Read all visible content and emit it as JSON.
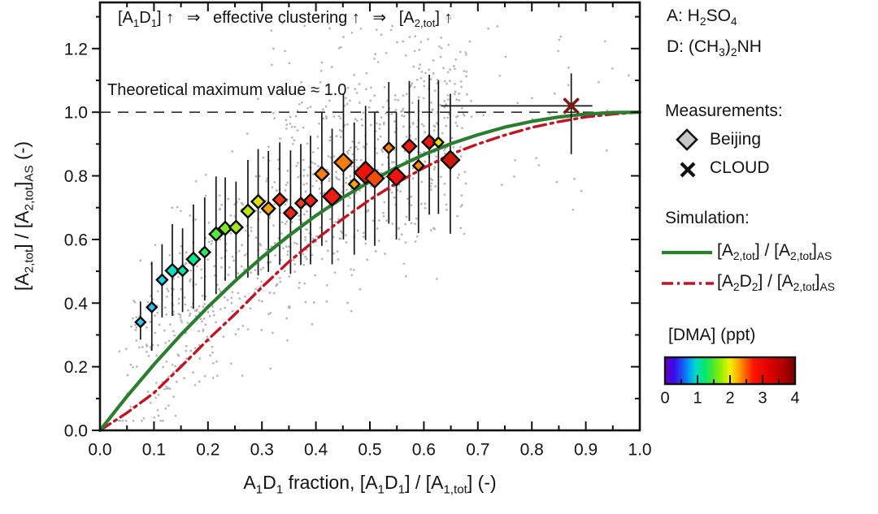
{
  "figure": {
    "annotation": [
      {
        "t": "[A"
      },
      {
        "t": "1",
        "s": 1
      },
      {
        "t": "D"
      },
      {
        "t": "1",
        "s": 1
      },
      {
        "t": "] ↑  ⇒  effective clustering ↑  ⇒  [A"
      },
      {
        "t": "2,tot",
        "s": 1
      },
      {
        "t": "] ↑"
      }
    ],
    "theoretical_label": "Theoretical maximum value ≈ 1.0"
  },
  "legend": {
    "species_a": [
      {
        "t": "A: H"
      },
      {
        "t": "2",
        "s": 1
      },
      {
        "t": "SO"
      },
      {
        "t": "4",
        "s": 1
      }
    ],
    "species_d": [
      {
        "t": "D: (CH"
      },
      {
        "t": "3",
        "s": 1
      },
      {
        "t": ")"
      },
      {
        "t": "2",
        "s": 1
      },
      {
        "t": "NH"
      }
    ],
    "measurements_title": "Measurements:",
    "beijing_label": "Beijing",
    "cloud_label": "CLOUD",
    "simulation_title": "Simulation:",
    "sim_green_label": [
      {
        "t": "[A"
      },
      {
        "t": "2,tot",
        "s": 1
      },
      {
        "t": "] / [A"
      },
      {
        "t": "2,tot",
        "s": 1
      },
      {
        "t": "]"
      },
      {
        "t": "AS",
        "s": 1
      }
    ],
    "sim_red_label": [
      {
        "t": "[A"
      },
      {
        "t": "2",
        "s": 1
      },
      {
        "t": "D"
      },
      {
        "t": "2",
        "s": 1
      },
      {
        "t": "] / [A"
      },
      {
        "t": "2,tot",
        "s": 1
      },
      {
        "t": "]"
      },
      {
        "t": "AS",
        "s": 1
      }
    ],
    "beijing_marker_fill": "#c8c8c8",
    "cloud_marker_color": "#111111",
    "colorbar": {
      "title": "[DMA] (ppt)",
      "tick_labels": [
        "0",
        "1",
        "2",
        "3",
        "4"
      ],
      "stops": [
        [
          0,
          "#6b00c4"
        ],
        [
          0.07,
          "#3a0ae8"
        ],
        [
          0.13,
          "#1b50f5"
        ],
        [
          0.19,
          "#00a4f0"
        ],
        [
          0.24,
          "#00dcc8"
        ],
        [
          0.3,
          "#00e673"
        ],
        [
          0.36,
          "#3fe83a"
        ],
        [
          0.43,
          "#93ee00"
        ],
        [
          0.5,
          "#f2f200"
        ],
        [
          0.56,
          "#ffae00"
        ],
        [
          0.62,
          "#ff5f00"
        ],
        [
          0.68,
          "#fa1400"
        ],
        [
          0.8,
          "#e00000"
        ],
        [
          0.9,
          "#b40000"
        ],
        [
          1,
          "#780000"
        ]
      ]
    }
  },
  "chart_data": {
    "type": "scatter",
    "title": "",
    "xlabel": [
      {
        "t": "A"
      },
      {
        "t": "1",
        "s": 1
      },
      {
        "t": "D"
      },
      {
        "t": "1",
        "s": 1
      },
      {
        "t": " fraction, [A"
      },
      {
        "t": "1",
        "s": 1
      },
      {
        "t": "D"
      },
      {
        "t": "1",
        "s": 1
      },
      {
        "t": "] / [A"
      },
      {
        "t": "1,tot",
        "s": 1
      },
      {
        "t": "] (-)"
      }
    ],
    "ylabel": [
      {
        "t": "[A"
      },
      {
        "t": "2,tot",
        "s": 1
      },
      {
        "t": "] / [A"
      },
      {
        "t": "2,tot",
        "s": 1
      },
      {
        "t": "]"
      },
      {
        "t": "AS",
        "s": 1
      },
      {
        "t": " (-)"
      }
    ],
    "xlim": [
      0,
      1
    ],
    "ylim": [
      0,
      1.345
    ],
    "x_tick_values": [
      0,
      0.1,
      0.2,
      0.3,
      0.4,
      0.5,
      0.6,
      0.7,
      0.8,
      0.9,
      1.0
    ],
    "x_tick_labels": [
      "0.0",
      "0.1",
      "0.2",
      "0.3",
      "0.4",
      "0.5",
      "0.6",
      "0.7",
      "0.8",
      "0.9",
      "1.0"
    ],
    "y_tick_values": [
      0,
      0.2,
      0.4,
      0.6,
      0.8,
      1.0,
      1.2
    ],
    "y_tick_labels": [
      "0.0",
      "0.2",
      "0.4",
      "0.6",
      "0.8",
      "1.0",
      "1.2"
    ],
    "x_minor_step": 0.05,
    "y_minor_step": 0.1,
    "grid": false,
    "reference_line": {
      "y": 1.0,
      "color": "#2e2e2e",
      "dash": "13 9"
    },
    "beijing_points": [
      {
        "x": 0.075,
        "y": 0.34,
        "lo": 0.285,
        "hi": 0.405,
        "r": 6,
        "c": "#38c6f4"
      },
      {
        "x": 0.096,
        "y": 0.387,
        "lo": 0.25,
        "hi": 0.53,
        "r": 6,
        "c": "#34c0f3"
      },
      {
        "x": 0.115,
        "y": 0.473,
        "lo": 0.355,
        "hi": 0.585,
        "r": 6.5,
        "c": "#1fd2e2"
      },
      {
        "x": 0.134,
        "y": 0.502,
        "lo": 0.36,
        "hi": 0.648,
        "r": 8,
        "c": "#10dcc8"
      },
      {
        "x": 0.153,
        "y": 0.502,
        "lo": 0.372,
        "hi": 0.635,
        "r": 6.5,
        "c": "#07e3a6"
      },
      {
        "x": 0.173,
        "y": 0.538,
        "lo": 0.382,
        "hi": 0.71,
        "r": 8,
        "c": "#07e987"
      },
      {
        "x": 0.194,
        "y": 0.56,
        "lo": 0.408,
        "hi": 0.732,
        "r": 6.5,
        "c": "#2ce95f"
      },
      {
        "x": 0.215,
        "y": 0.617,
        "lo": 0.428,
        "hi": 0.798,
        "r": 8,
        "c": "#55e93c"
      },
      {
        "x": 0.232,
        "y": 0.635,
        "lo": 0.47,
        "hi": 0.795,
        "r": 8,
        "c": "#80e92b"
      },
      {
        "x": 0.252,
        "y": 0.638,
        "lo": 0.468,
        "hi": 0.782,
        "r": 8,
        "c": "#a0e621"
      },
      {
        "x": 0.274,
        "y": 0.689,
        "lo": 0.48,
        "hi": 0.85,
        "r": 8,
        "c": "#bce317"
      },
      {
        "x": 0.293,
        "y": 0.719,
        "lo": 0.487,
        "hi": 0.884,
        "r": 8,
        "c": "#dade10"
      },
      {
        "x": 0.312,
        "y": 0.697,
        "lo": 0.498,
        "hi": 0.878,
        "r": 8,
        "c": "#f5a313"
      },
      {
        "x": 0.333,
        "y": 0.725,
        "lo": 0.52,
        "hi": 0.905,
        "r": 8,
        "c": "#ef3517"
      },
      {
        "x": 0.353,
        "y": 0.683,
        "lo": 0.492,
        "hi": 0.88,
        "r": 8,
        "c": "#ee2715"
      },
      {
        "x": 0.372,
        "y": 0.714,
        "lo": 0.52,
        "hi": 0.9,
        "r": 6.5,
        "c": "#f04016"
      },
      {
        "x": 0.39,
        "y": 0.722,
        "lo": 0.522,
        "hi": 0.926,
        "r": 8,
        "c": "#ee2415"
      },
      {
        "x": 0.411,
        "y": 0.806,
        "lo": 0.58,
        "hi": 1.0,
        "r": 8.5,
        "c": "#f67e0e"
      },
      {
        "x": 0.43,
        "y": 0.735,
        "lo": 0.522,
        "hi": 0.948,
        "r": 11,
        "c": "#ee1d12"
      },
      {
        "x": 0.451,
        "y": 0.842,
        "lo": 0.6,
        "hi": 1.058,
        "r": 11,
        "c": "#f67c0c"
      },
      {
        "x": 0.471,
        "y": 0.774,
        "lo": 0.552,
        "hi": 0.968,
        "r": 6.5,
        "c": "#f7a70a"
      },
      {
        "x": 0.492,
        "y": 0.81,
        "lo": 0.598,
        "hi": 1.02,
        "r": 13.5,
        "c": "#f21107"
      },
      {
        "x": 0.509,
        "y": 0.792,
        "lo": 0.58,
        "hi": 1.0,
        "r": 11,
        "c": "#f44d0a"
      },
      {
        "x": 0.535,
        "y": 0.888,
        "lo": 0.65,
        "hi": 1.095,
        "r": 6.5,
        "c": "#f6810d"
      },
      {
        "x": 0.549,
        "y": 0.798,
        "lo": 0.6,
        "hi": 1.0,
        "r": 11,
        "c": "#ee130c"
      },
      {
        "x": 0.573,
        "y": 0.893,
        "lo": 0.658,
        "hi": 1.098,
        "r": 8.5,
        "c": "#ee1f0e"
      },
      {
        "x": 0.59,
        "y": 0.832,
        "lo": 0.62,
        "hi": 1.04,
        "r": 6.5,
        "c": "#f6860c"
      },
      {
        "x": 0.61,
        "y": 0.906,
        "lo": 0.678,
        "hi": 1.118,
        "r": 8.5,
        "c": "#ee170d"
      },
      {
        "x": 0.627,
        "y": 0.905,
        "lo": 0.68,
        "hi": 1.1,
        "r": 6,
        "c": "#eee00a"
      },
      {
        "x": 0.649,
        "y": 0.85,
        "lo": 0.618,
        "hi": 1.058,
        "r": 11,
        "c": "#c91a0c"
      }
    ],
    "cloud_point": {
      "x": 0.873,
      "y": 1.02,
      "y_lo": 0.868,
      "y_hi": 1.122,
      "x_lo": 0.632,
      "x_hi": 0.912,
      "color": "#7e170d",
      "arm": 9,
      "stroke": 3.6
    },
    "sim_green": {
      "color": "#2b7e2f",
      "x": [
        0,
        0.05,
        0.1,
        0.15,
        0.2,
        0.25,
        0.3,
        0.35,
        0.4,
        0.45,
        0.5,
        0.55,
        0.6,
        0.65,
        0.7,
        0.75,
        0.8,
        0.85,
        0.9,
        0.95,
        1
      ],
      "y": [
        0,
        0.107,
        0.207,
        0.301,
        0.388,
        0.469,
        0.544,
        0.612,
        0.675,
        0.732,
        0.782,
        0.827,
        0.867,
        0.901,
        0.929,
        0.953,
        0.971,
        0.985,
        0.994,
        0.999,
        1
      ]
    },
    "sim_red": {
      "color": "#c01425",
      "dash": "15 6 3 6",
      "x": [
        0,
        0.05,
        0.1,
        0.15,
        0.2,
        0.25,
        0.3,
        0.35,
        0.4,
        0.45,
        0.5,
        0.55,
        0.6,
        0.65,
        0.7,
        0.75,
        0.8,
        0.85,
        0.9,
        0.95,
        1
      ],
      "y": [
        0,
        0.055,
        0.118,
        0.2,
        0.285,
        0.365,
        0.45,
        0.53,
        0.6,
        0.665,
        0.725,
        0.778,
        0.825,
        0.868,
        0.9,
        0.928,
        0.952,
        0.97,
        0.985,
        0.994,
        1
      ]
    },
    "background_scatter": {
      "count": 980,
      "seed": 11,
      "color": "#adadad",
      "radius": 1.35,
      "opacity": 0.9,
      "band_fraction": 0.9,
      "band_x_min": 0.035,
      "band_x_span": 0.645,
      "band_x_pow": 0.88,
      "band_y_offset": 0.045,
      "band_y_sigma": 0.16,
      "high_fraction": 0.06,
      "high_x_min": 0.3,
      "high_x_span": 0.38,
      "high_y_min": 0.95,
      "high_y_span": 0.33,
      "right_x_min": 0.68,
      "right_x_span": 0.31,
      "right_y_min": 0.62,
      "right_y_span": 0.66,
      "y_min": 0.03,
      "y_max": 1.3
    }
  }
}
